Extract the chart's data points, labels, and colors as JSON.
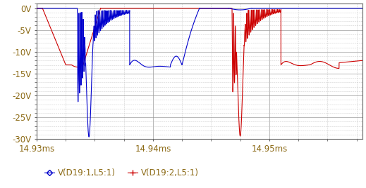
{
  "title": "",
  "xlabel": "",
  "ylabel": "",
  "xlim": [
    0.01493,
    0.014958
  ],
  "ylim": [
    -30,
    1
  ],
  "yticks": [
    0,
    -5,
    -10,
    -15,
    -20,
    -25,
    -30
  ],
  "ytick_labels": [
    "0V",
    "-5V",
    "-10V",
    "-15V",
    "-20V",
    "-25V",
    "-30V"
  ],
  "xticks": [
    0.01493,
    0.01494,
    0.01495
  ],
  "xtick_labels": [
    "14.93ms",
    "14.94ms",
    "14.95ms"
  ],
  "bg_color": "#ffffff",
  "plot_bg_color": "#ffffff",
  "grid_major_color": "#999999",
  "grid_minor_color": "#bbbbbb",
  "blue_color": "#0000cc",
  "red_color": "#cc0000",
  "legend_blue_label": "V(D19:1,L5:1)",
  "legend_red_label": "V(D19:2,L5:1)",
  "legend_text_color": "#8B6914",
  "axis_label_color": "#8B6914"
}
